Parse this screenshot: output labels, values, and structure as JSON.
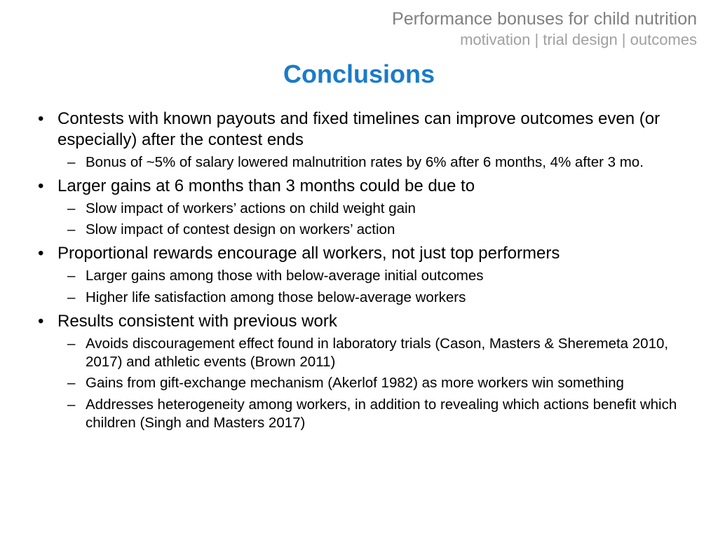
{
  "header": {
    "title": "Performance bonuses for child nutrition",
    "subtitle": "motivation | trial design | outcomes"
  },
  "title": "Conclusions",
  "bullets": [
    {
      "text": "Contests with known payouts and fixed timelines can improve outcomes even (or especially) after the contest ends",
      "sub": [
        "Bonus of ~5% of salary lowered malnutrition rates by 6% after 6 months, 4% after 3 mo."
      ]
    },
    {
      "text": "Larger gains at 6 months than 3 months could be due to",
      "sub": [
        "Slow impact of workers’ actions on child weight gain",
        "Slow impact of contest design on workers’ action"
      ]
    },
    {
      "text": "Proportional rewards encourage all workers, not just top performers",
      "sub": [
        "Larger gains among those with below-average initial outcomes",
        "Higher life satisfaction among those below-average workers"
      ]
    },
    {
      "text": "Results consistent with previous work",
      "sub": [
        "Avoids discouragement effect found in laboratory trials (Cason, Masters & Sheremeta 2010, 2017) and athletic events (Brown 2011)",
        "Gains from gift-exchange mechanism (Akerlof 1982) as more workers win something",
        "Addresses heterogeneity among workers, in addition to revealing which actions benefit which children (Singh and Masters 2017)"
      ]
    }
  ],
  "colors": {
    "title_color": "#1a7bc9",
    "header_color": "#808080",
    "header_sub_color": "#a0a0a0",
    "text_color": "#000000",
    "background": "#ffffff"
  }
}
